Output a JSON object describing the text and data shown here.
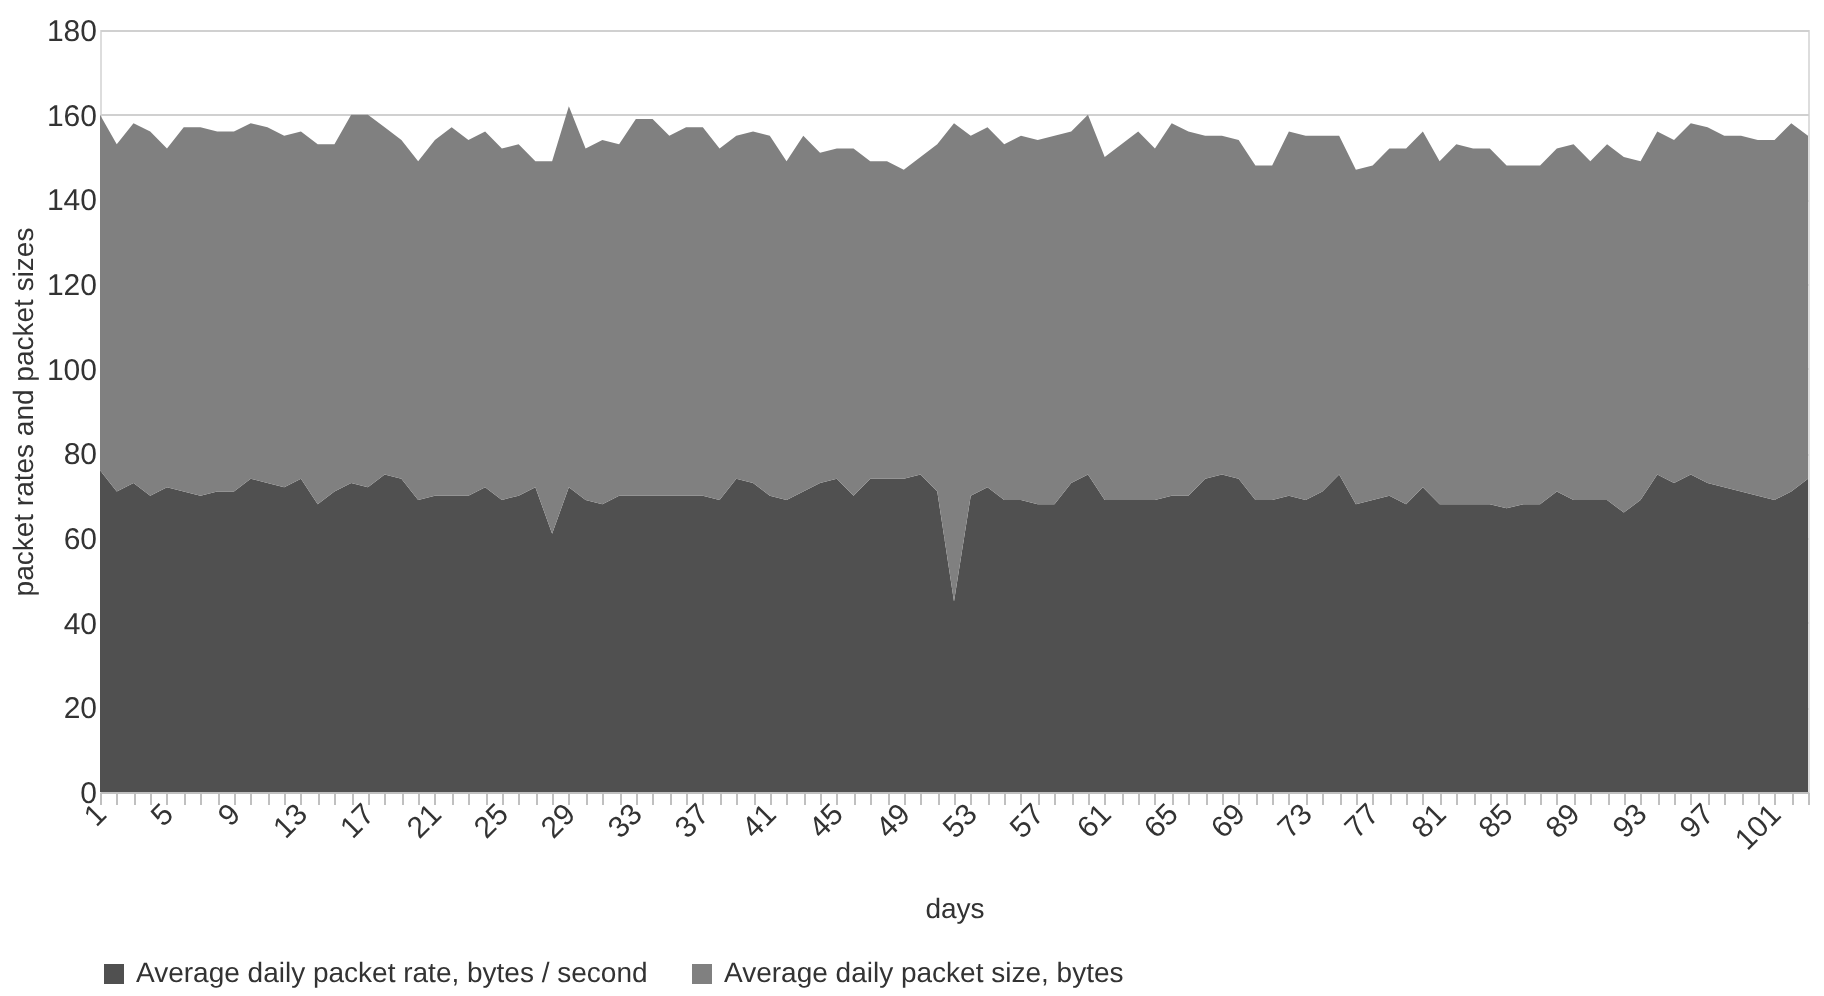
{
  "chart_data": {
    "type": "area",
    "stacked": true,
    "xlabel": "days",
    "ylabel": "packet rates and packet sizes",
    "categories": [
      "1",
      null,
      null,
      null,
      "5",
      null,
      null,
      null,
      "9",
      null,
      null,
      null,
      "13",
      null,
      null,
      null,
      "17",
      null,
      null,
      null,
      "21",
      null,
      null,
      null,
      "25",
      null,
      null,
      null,
      "29",
      null,
      null,
      null,
      "33",
      null,
      null,
      null,
      "37",
      null,
      null,
      null,
      "41",
      null,
      null,
      null,
      "45",
      null,
      null,
      null,
      "49",
      null,
      null,
      null,
      "53",
      null,
      null,
      null,
      "57",
      null,
      null,
      null,
      "61",
      null,
      null,
      null,
      "65",
      null,
      null,
      null,
      "69",
      null,
      null,
      null,
      "73",
      null,
      null,
      null,
      "77",
      null,
      null,
      null,
      "81",
      null,
      null,
      null,
      "85",
      null,
      null,
      null,
      "89",
      null,
      null,
      null,
      "93",
      null,
      null,
      null,
      "97",
      null,
      null,
      null,
      "101",
      null,
      null
    ],
    "series": [
      {
        "name": "Average daily packet rate, bytes / second",
        "color": "#505050",
        "values": [
          76,
          71,
          73,
          70,
          72,
          71,
          70,
          71,
          71,
          74,
          73,
          72,
          74,
          68,
          71,
          73,
          72,
          75,
          74,
          69,
          70,
          70,
          70,
          72,
          69,
          70,
          72,
          61,
          72,
          69,
          68,
          70,
          70,
          70,
          70,
          70,
          70,
          69,
          74,
          73,
          70,
          69,
          71,
          73,
          74,
          70,
          74,
          74,
          74,
          75,
          71,
          45,
          70,
          72,
          69,
          69,
          68,
          68,
          73,
          75,
          69,
          69,
          69,
          69,
          70,
          70,
          74,
          75,
          74,
          69,
          69,
          70,
          69,
          71,
          75,
          68,
          69,
          70,
          68,
          72,
          68,
          68,
          68,
          68,
          67,
          68,
          68,
          71,
          69,
          69,
          69,
          66,
          69,
          75,
          73,
          75,
          73,
          72,
          71,
          70,
          69,
          71,
          74
        ]
      },
      {
        "name": "Average daily packet size, bytes",
        "color": "#808080",
        "values": [
          84,
          82,
          85,
          86,
          80,
          86,
          87,
          85,
          85,
          84,
          84,
          83,
          82,
          85,
          82,
          87,
          88,
          82,
          80,
          80,
          84,
          87,
          84,
          84,
          83,
          83,
          77,
          88,
          90,
          83,
          86,
          83,
          89,
          89,
          85,
          87,
          87,
          83,
          81,
          83,
          85,
          80,
          84,
          78,
          78,
          82,
          75,
          75,
          73,
          75,
          82,
          113,
          85,
          85,
          84,
          86,
          86,
          87,
          83,
          85,
          81,
          84,
          87,
          83,
          88,
          86,
          81,
          80,
          80,
          79,
          79,
          86,
          86,
          84,
          80,
          79,
          79,
          82,
          84,
          84,
          81,
          85,
          84,
          84,
          81,
          80,
          80,
          81,
          84,
          80,
          84,
          84,
          80,
          81,
          81,
          83,
          84,
          83,
          84,
          84,
          85,
          87,
          81
        ]
      }
    ],
    "ylim": [
      0,
      180
    ],
    "yticks": [
      0,
      20,
      40,
      60,
      80,
      100,
      120,
      140,
      160,
      180
    ],
    "grid": "y",
    "legend": "bottom"
  }
}
